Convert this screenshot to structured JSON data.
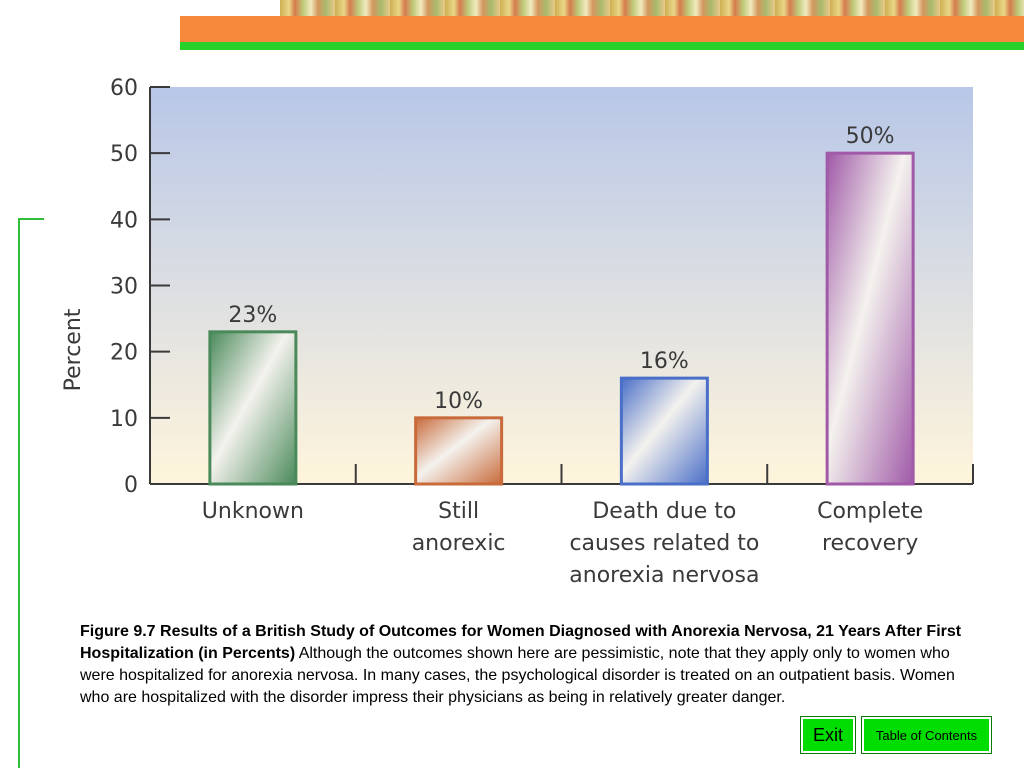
{
  "colors": {
    "orange_band": "#f5883a",
    "green_rule": "#27d12a",
    "button_green": "#00dd00",
    "plot_top": "#b8c7e8",
    "plot_bottom": "#fff5dc"
  },
  "chart_data": {
    "type": "bar",
    "ylabel": "Percent",
    "ylim": [
      0,
      60
    ],
    "yticks": [
      0,
      10,
      20,
      30,
      40,
      50,
      60
    ],
    "grid": false,
    "categories": [
      [
        "Unknown"
      ],
      [
        "Still",
        "anorexic"
      ],
      [
        "Death due to",
        "causes related to",
        "anorexia nervosa"
      ],
      [
        "Complete",
        "recovery"
      ]
    ],
    "values": [
      23,
      10,
      16,
      50
    ],
    "data_labels": [
      "23%",
      "10%",
      "16%",
      "50%"
    ],
    "bar_colors": [
      "#4a8a5a",
      "#c86a3a",
      "#4a6fc8",
      "#a05aa8"
    ]
  },
  "caption": {
    "title": "Figure 9.7  Results of a British Study of Outcomes for Women Diagnosed with Anorexia Nervosa, 21 Years After First Hospitalization (in Percents)",
    "body": " Although the outcomes shown here are pessimistic, note that they apply only to women who were hospitalized for anorexia nervosa. In many cases, the psychological disorder is treated on an outpatient basis. Women who are hospitalized with the disorder impress their physicians as being in relatively greater danger."
  },
  "nav": {
    "exit_label": "Exit",
    "toc_label": "Table of Contents"
  }
}
